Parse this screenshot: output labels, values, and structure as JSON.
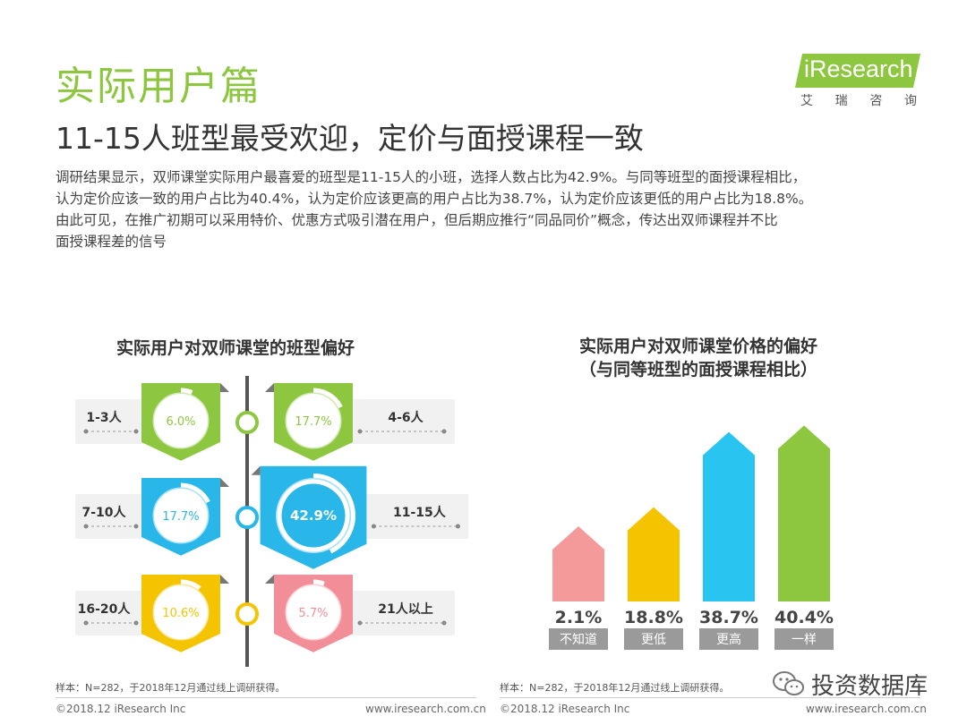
{
  "header": {
    "section": "实际用户篇",
    "headline": "11-15人班型最受欢迎，定价与面授课程一致",
    "body": [
      "调研结果显示，双师课堂实际用户最喜爱的班型是11-15人的小班，选择人数占比为42.9%。与同等班型的面授课程相比，",
      "认为定价应该一致的用户占比为40.4%，认为定价应该更高的用户占比为38.7%，认为定价应该更低的用户占比为18.8%。",
      "由此可见，在推广初期可以采用特价、优惠方式吸引潜在用户，但后期应推行“同品同价”概念，传达出双师课程并不比",
      "面授课程差的信号"
    ]
  },
  "logo": {
    "brand": "iResearch",
    "sub": [
      "艾",
      "瑞",
      "咨",
      "询"
    ],
    "color": "#8dc63f"
  },
  "chart_data": [
    {
      "type": "infographic",
      "title": "实际用户对双师课堂的班型偏好",
      "categories": [
        "1-3人",
        "4-6人",
        "7-10人",
        "11-15人",
        "16-20人",
        "21人以上"
      ],
      "values": [
        6.0,
        17.7,
        17.7,
        42.9,
        10.6,
        5.7
      ],
      "labels": [
        "6.0%",
        "17.7%",
        "17.7%",
        "42.9%",
        "10.6%",
        "5.7%"
      ],
      "colors": [
        "#8dc63f",
        "#8dc63f",
        "#29b6e8",
        "#29b6e8",
        "#f5c400",
        "#f28e97"
      ],
      "highlight": "11-15人"
    },
    {
      "type": "bar",
      "title": [
        "实际用户对双师课堂价格的偏好",
        "（与同等班型的面授课程相比）"
      ],
      "categories": [
        "不知道",
        "更低",
        "更高",
        "一样"
      ],
      "values": [
        2.1,
        18.8,
        38.7,
        40.4
      ],
      "labels": [
        "2.1%",
        "18.8%",
        "38.7%",
        "40.4%"
      ],
      "colors": [
        "#f59a9a",
        "#f5c400",
        "#29c4f0",
        "#8dc63f"
      ]
    }
  ],
  "footer": {
    "sample": "样本：N=282，于2018年12月通过线上调研获得。",
    "copyright": "©2018.12 iResearch Inc",
    "site": "www.iresearch.com.cn"
  },
  "watermark": {
    "text": "投资数据库"
  }
}
